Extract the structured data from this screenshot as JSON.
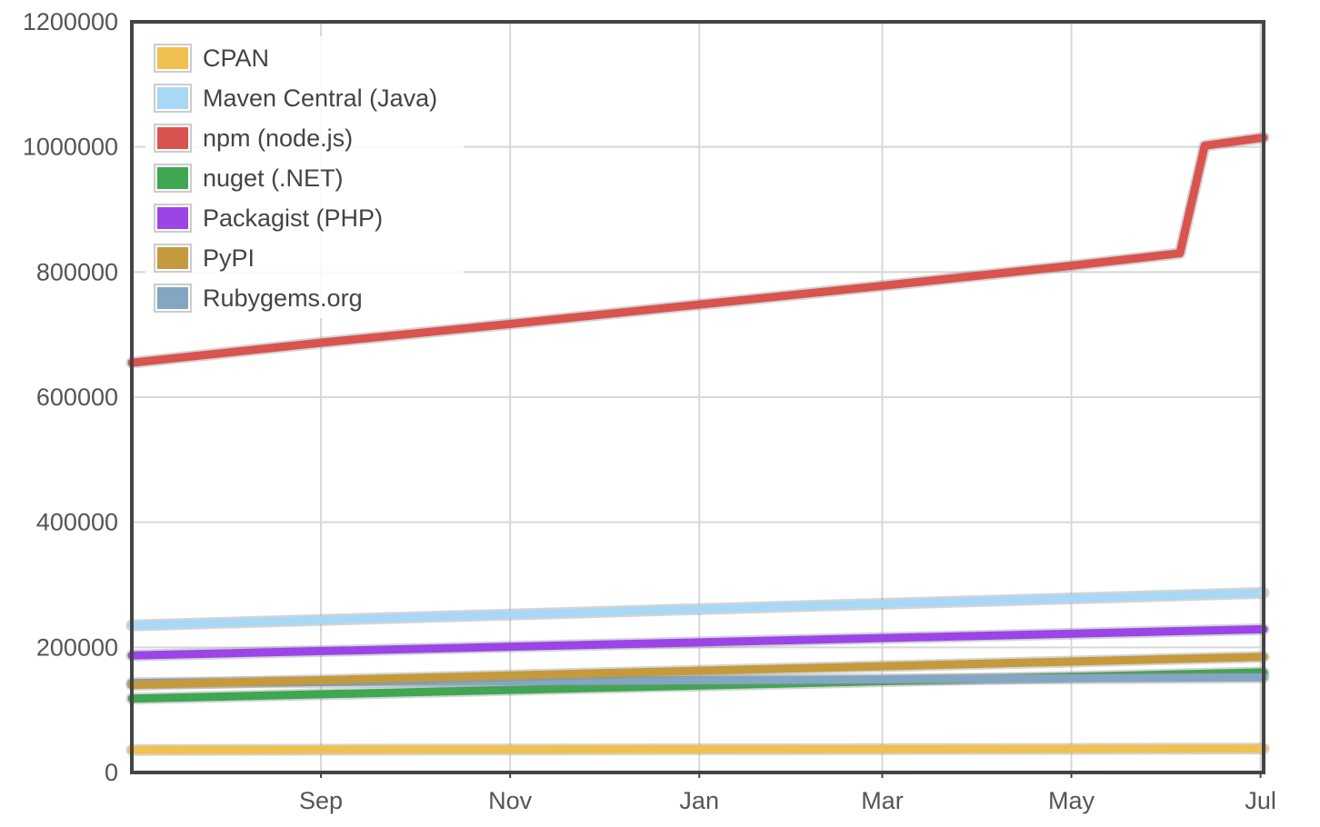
{
  "chart_data": {
    "type": "line",
    "title": "",
    "xlabel": "",
    "ylabel": "",
    "x_ticks": [
      "Sep",
      "Nov",
      "Jan",
      "Mar",
      "May",
      "Jul"
    ],
    "x_tick_dates": [
      "2016-09-01",
      "2016-11-01",
      "2017-01-01",
      "2017-03-01",
      "2017-05-01",
      "2017-07-01"
    ],
    "xlim": [
      "2016-07-02",
      "2017-07-02"
    ],
    "ylim": [
      0,
      1200000
    ],
    "y_ticks": [
      0,
      200000,
      400000,
      600000,
      800000,
      1000000,
      1200000
    ],
    "y_tick_labels": [
      "0",
      "200000",
      "400000",
      "600000",
      "800000",
      "1000000",
      "1200000"
    ],
    "grid": true,
    "legend_position": "top-left",
    "series": [
      {
        "name": "CPAN",
        "color": "#f0c050",
        "points": [
          [
            "2016-07-02",
            36000
          ],
          [
            "2017-07-02",
            38000
          ]
        ]
      },
      {
        "name": "Maven Central (Java)",
        "color": "#a8d8f5",
        "points": [
          [
            "2016-07-02",
            235000
          ],
          [
            "2017-07-02",
            287000
          ]
        ]
      },
      {
        "name": "npm (node.js)",
        "color": "#d9534f",
        "points": [
          [
            "2016-07-02",
            655000
          ],
          [
            "2016-09-01",
            687000
          ],
          [
            "2016-11-01",
            717000
          ],
          [
            "2017-01-01",
            748000
          ],
          [
            "2017-03-01",
            778000
          ],
          [
            "2017-05-01",
            810000
          ],
          [
            "2017-06-05",
            830000
          ],
          [
            "2017-06-13",
            1002000
          ],
          [
            "2017-07-02",
            1015000
          ]
        ]
      },
      {
        "name": "nuget (.NET)",
        "color": "#3fa652",
        "points": [
          [
            "2016-07-02",
            118000
          ],
          [
            "2017-07-02",
            160000
          ]
        ]
      },
      {
        "name": "Packagist (PHP)",
        "color": "#9b45e8",
        "points": [
          [
            "2016-07-02",
            187000
          ],
          [
            "2017-07-02",
            229000
          ]
        ]
      },
      {
        "name": "PyPI",
        "color": "#c49a3c",
        "points": [
          [
            "2016-07-02",
            140000
          ],
          [
            "2017-07-02",
            185000
          ]
        ]
      },
      {
        "name": "Rubygems.org",
        "color": "#83a7c2",
        "points": [
          [
            "2016-07-02",
            143000
          ],
          [
            "2017-07-02",
            152000
          ]
        ]
      }
    ]
  }
}
